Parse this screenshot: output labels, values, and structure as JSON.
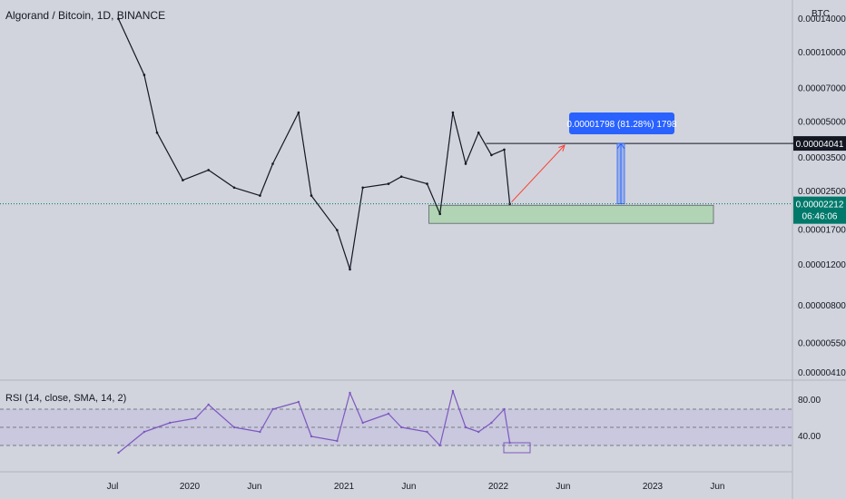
{
  "header": {
    "title": "Algorand / Bitcoin, 1D, BINANCE",
    "unit": "BTC"
  },
  "colors": {
    "background": "#d1d4dc",
    "price_line": "#131722",
    "current_price_tag": "#00796b",
    "target_tag": "#131722",
    "measure_box": "#2962ff",
    "support_zone": "#a5d6a7",
    "arrow": "#ff3b30",
    "rsi_line": "#7e57c2",
    "rsi_band": "#c3bde0"
  },
  "chart_data": [
    {
      "type": "line",
      "subtype": "candlestick-price",
      "title": "Algorand / Bitcoin, 1D, BINANCE",
      "scale": "log",
      "y_unit": "BTC",
      "y_ticks": [
        "0.00014000",
        "0.00010000",
        "0.00007000",
        "0.00005000",
        "0.00003500",
        "0.00002500",
        "0.00001700",
        "0.00001200",
        "0.00000800",
        "0.00000550",
        "0.00000410"
      ],
      "y_tick_values": [
        0.00014,
        0.0001,
        7e-05,
        5e-05,
        3.5e-05,
        2.5e-05,
        1.7e-05,
        1.2e-05,
        8e-06,
        5.5e-06,
        4.1e-06
      ],
      "x_ticks": [
        "Jul",
        "2020",
        "Jun",
        "2021",
        "Jun",
        "2022",
        "Jun",
        "2023",
        "Jun"
      ],
      "x": [
        "2019-07",
        "2019-09",
        "2019-10",
        "2019-12",
        "2020-02",
        "2020-04",
        "2020-06",
        "2020-07",
        "2020-09",
        "2020-10",
        "2020-12",
        "2021-01",
        "2021-02",
        "2021-04",
        "2021-05",
        "2021-07",
        "2021-08",
        "2021-09",
        "2021-10",
        "2021-11",
        "2021-12",
        "2022-01",
        "2022-01-28"
      ],
      "values": [
        0.00014,
        8e-05,
        4.5e-05,
        2.8e-05,
        3.1e-05,
        2.6e-05,
        2.4e-05,
        3.3e-05,
        5.5e-05,
        2.4e-05,
        1.7e-05,
        1.15e-05,
        2.6e-05,
        2.7e-05,
        2.9e-05,
        2.7e-05,
        2e-05,
        5.5e-05,
        3.3e-05,
        4.5e-05,
        3.6e-05,
        3.8e-05,
        2.212e-05
      ],
      "current_price": "0.00002212",
      "countdown": "06:46:06",
      "target_level": "0.00004041",
      "measure_label": "0.00001798 (81.28%) 1798",
      "support_zone": [
        1.82e-05,
        2.18e-05
      ]
    },
    {
      "type": "line",
      "title": "RSI (14, close, SMA, 14, 2)",
      "y_ticks": [
        "80.00",
        "40.00"
      ],
      "y_tick_values": [
        80,
        40
      ],
      "band": [
        30,
        70
      ],
      "ylim": [
        15,
        95
      ],
      "x": [
        "2019-07",
        "2019-09",
        "2019-11",
        "2020-01",
        "2020-02",
        "2020-04",
        "2020-06",
        "2020-07",
        "2020-09",
        "2020-10",
        "2020-12",
        "2021-01",
        "2021-02",
        "2021-04",
        "2021-05",
        "2021-07",
        "2021-08",
        "2021-09",
        "2021-10",
        "2021-11",
        "2021-12",
        "2022-01",
        "2022-01-28"
      ],
      "values": [
        22,
        45,
        55,
        60,
        75,
        50,
        45,
        70,
        78,
        40,
        35,
        88,
        55,
        65,
        50,
        45,
        30,
        90,
        50,
        45,
        55,
        70,
        33
      ]
    }
  ]
}
